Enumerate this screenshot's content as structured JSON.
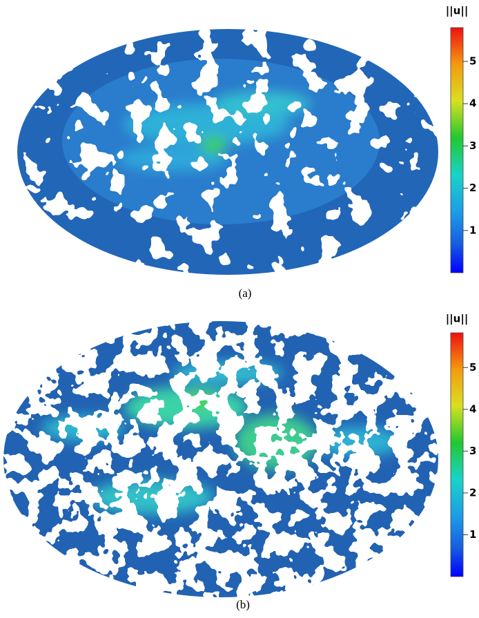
{
  "panels": [
    {
      "caption": "(a)",
      "colorbar": {
        "title": "||u||",
        "lim": [
          0,
          5.8
        ],
        "ticks": [
          1,
          2,
          3,
          4,
          5
        ]
      }
    },
    {
      "caption": "(b)",
      "colorbar": {
        "title": "||u||",
        "lim": [
          0,
          5.83
        ],
        "ticks": [
          1,
          2,
          3,
          4,
          5
        ]
      }
    }
  ]
}
